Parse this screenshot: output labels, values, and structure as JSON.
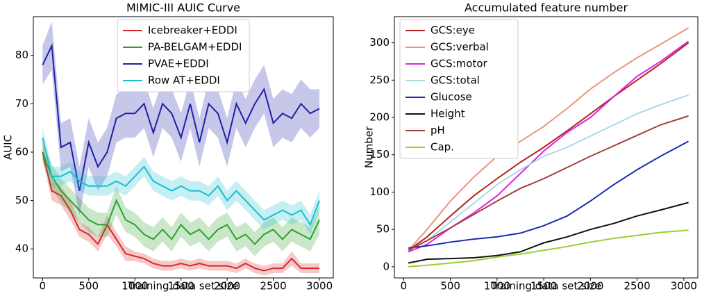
{
  "chart_data": [
    {
      "type": "line",
      "title": "MIMIC-III AUIC Curve",
      "x_label": "Training data set size",
      "y_label": "AUIC",
      "x": [
        0,
        100,
        200,
        300,
        400,
        500,
        600,
        700,
        800,
        900,
        1000,
        1100,
        1200,
        1300,
        1400,
        1500,
        1600,
        1700,
        1800,
        1900,
        2000,
        2100,
        2200,
        2300,
        2400,
        2500,
        2600,
        2700,
        2800,
        2900,
        3000
      ],
      "xlim": [
        -100,
        3150
      ],
      "xticks": [
        0,
        500,
        1000,
        1500,
        2000,
        2500,
        3000
      ],
      "ylim": [
        34,
        88
      ],
      "yticks": [
        40,
        50,
        60,
        70,
        80
      ],
      "legend": "upper-center",
      "series": [
        {
          "name": "Icebreaker+EDDI",
          "color": "#d62728",
          "values": [
            60,
            52,
            51,
            48,
            44,
            43,
            41,
            45,
            42,
            39,
            38.5,
            38,
            37,
            36.5,
            36.5,
            37,
            36.5,
            37,
            36.5,
            36.5,
            36.5,
            36,
            37,
            36,
            35.5,
            36,
            36,
            38,
            36,
            36,
            36
          ],
          "errors": [
            1.5,
            2,
            2,
            2,
            1.5,
            1.5,
            1.5,
            2,
            1.5,
            1.5,
            1,
            1,
            1,
            1,
            1,
            1,
            1,
            1,
            1,
            1,
            1,
            1,
            1,
            1,
            1,
            1,
            1,
            1.5,
            1,
            1,
            1
          ]
        },
        {
          "name": "PA-BELGAM+EDDI",
          "color": "#2ca02c",
          "values": [
            60,
            55,
            52,
            50,
            48,
            46,
            45,
            45,
            50,
            46,
            45,
            43,
            42,
            44,
            42,
            45,
            43,
            44,
            42,
            44,
            45,
            42,
            43,
            41,
            43,
            44,
            42,
            44,
            43,
            42,
            46
          ],
          "errors": [
            2,
            2.5,
            2.5,
            2.5,
            2.5,
            2.5,
            2.5,
            2.5,
            3,
            2.5,
            2.5,
            2.5,
            2.5,
            2.5,
            2.5,
            2.5,
            2.5,
            2.5,
            2.5,
            2.5,
            2.5,
            2.5,
            2.5,
            2.5,
            2.5,
            2.5,
            2.5,
            2.5,
            2.5,
            2.5,
            3
          ]
        },
        {
          "name": "PVAE+EDDI",
          "color": "#1f1fa8",
          "values": [
            78,
            82,
            61,
            62,
            52,
            62,
            57,
            60,
            67,
            68,
            68,
            70,
            64,
            70,
            68,
            63,
            70,
            62,
            70,
            68,
            62,
            70,
            66,
            70,
            73,
            66,
            68,
            67,
            70,
            68,
            69
          ],
          "errors": [
            4,
            5,
            5,
            5,
            5,
            5,
            5,
            5,
            5,
            5,
            5,
            5,
            5,
            5,
            5,
            5,
            5,
            5,
            5,
            5,
            5,
            5,
            5,
            5,
            5,
            5,
            5,
            5,
            5,
            5,
            4
          ]
        },
        {
          "name": "Row AT+EDDI",
          "color": "#17becf",
          "values": [
            63,
            55,
            55,
            56,
            54,
            53,
            53,
            53,
            54,
            53,
            55,
            57,
            54,
            53,
            52,
            53,
            52,
            52,
            51,
            53,
            50,
            52,
            50,
            48,
            46,
            47,
            48,
            47,
            48,
            45,
            50
          ],
          "errors": [
            2,
            2,
            2,
            2,
            2,
            2,
            2,
            2,
            2,
            2,
            2,
            2,
            2,
            2,
            2,
            2,
            2,
            2,
            2,
            2,
            2,
            2,
            2,
            2,
            2,
            2,
            2,
            2,
            2,
            2,
            2
          ]
        }
      ]
    },
    {
      "type": "line",
      "title": "Accumulated feature number",
      "x_label": "Training data set size",
      "y_label": "Number",
      "x": [
        50,
        250,
        500,
        750,
        1000,
        1250,
        1500,
        1750,
        2000,
        2250,
        2500,
        2750,
        3050
      ],
      "xlim": [
        -100,
        3150
      ],
      "xticks": [
        0,
        500,
        1000,
        1500,
        2000,
        2500,
        3000
      ],
      "ylim": [
        -15,
        335
      ],
      "yticks": [
        0,
        50,
        100,
        150,
        200,
        250,
        300
      ],
      "legend": "upper-left",
      "series": [
        {
          "name": "GCS:eye",
          "color": "#b22222",
          "values": [
            22,
            40,
            68,
            95,
            118,
            140,
            160,
            182,
            205,
            228,
            250,
            272,
            300
          ]
        },
        {
          "name": "GCS:verbal",
          "color": "#e9967a",
          "values": [
            22,
            50,
            88,
            120,
            148,
            168,
            188,
            212,
            238,
            260,
            280,
            298,
            320
          ]
        },
        {
          "name": "GCS:motor",
          "color": "#e020e0",
          "values": [
            20,
            30,
            52,
            72,
            95,
            125,
            155,
            180,
            200,
            228,
            255,
            275,
            302
          ]
        },
        {
          "name": "GCS:total",
          "color": "#add8e6",
          "values": [
            22,
            35,
            60,
            85,
            110,
            130,
            148,
            160,
            175,
            190,
            205,
            217,
            230
          ]
        },
        {
          "name": "Glucose",
          "color": "#1c2cb0",
          "values": [
            25,
            28,
            33,
            37,
            40,
            45,
            55,
            68,
            88,
            110,
            130,
            148,
            168
          ]
        },
        {
          "name": "Height",
          "color": "#111111",
          "values": [
            5,
            10,
            11,
            12,
            15,
            20,
            32,
            40,
            50,
            58,
            68,
            76,
            86
          ]
        },
        {
          "name": "pH",
          "color": "#a0403a",
          "values": [
            22,
            35,
            52,
            70,
            88,
            105,
            118,
            133,
            148,
            162,
            176,
            190,
            202
          ]
        },
        {
          "name": "Cap.",
          "color": "#9acd32",
          "values": [
            0,
            2,
            5,
            8,
            13,
            17,
            22,
            27,
            33,
            38,
            42,
            46,
            49
          ]
        }
      ]
    }
  ]
}
